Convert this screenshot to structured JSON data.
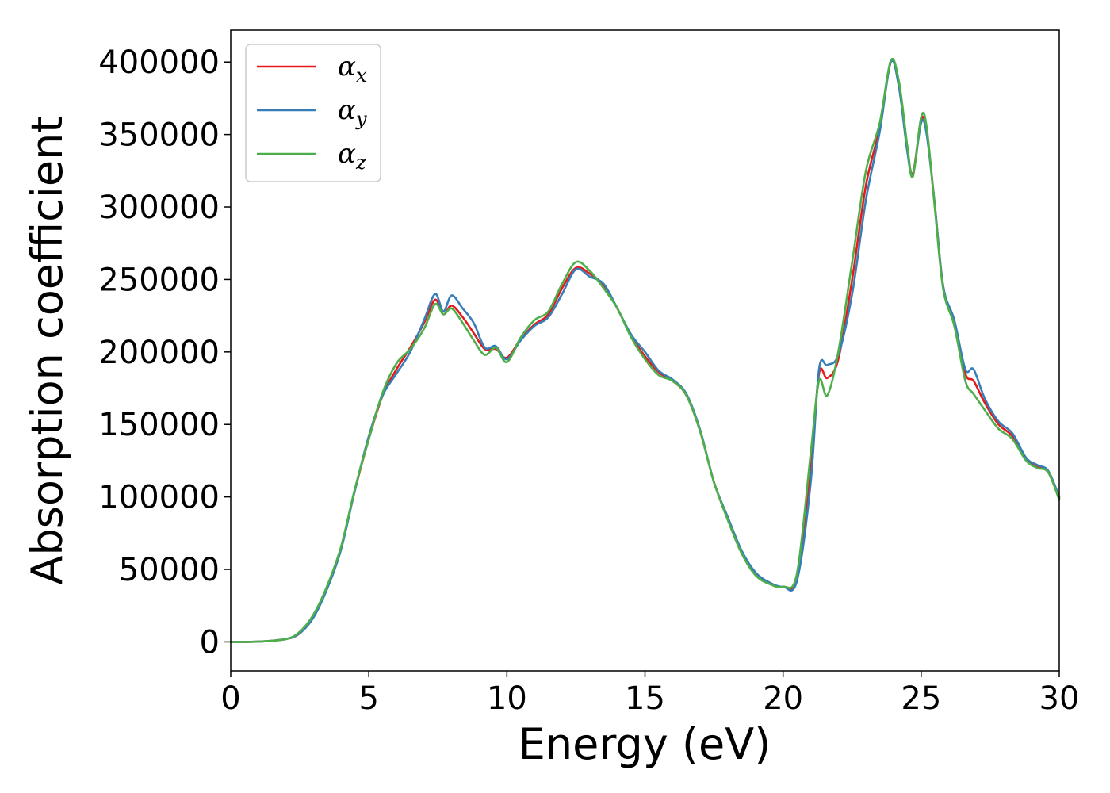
{
  "chart_data": {
    "type": "line",
    "xlabel": "Energy (eV)",
    "ylabel": "Absorption coefficient",
    "xlim": [
      0,
      30
    ],
    "ylim": [
      -20000,
      422000
    ],
    "x_ticks": [
      "0",
      "5",
      "10",
      "15",
      "20",
      "25",
      "30"
    ],
    "y_ticks": [
      "0",
      "50000",
      "100000",
      "150000",
      "200000",
      "250000",
      "300000",
      "350000",
      "400000"
    ],
    "grid": false,
    "legend_position": "top-left",
    "series": [
      {
        "name": "α",
        "subscript": "x",
        "color": "#e41a1c",
        "points": [
          [
            0,
            0
          ],
          [
            1,
            200
          ],
          [
            2,
            2000
          ],
          [
            2.5,
            6000
          ],
          [
            3,
            18000
          ],
          [
            3.5,
            38000
          ],
          [
            4,
            65000
          ],
          [
            4.5,
            105000
          ],
          [
            5,
            140000
          ],
          [
            5.5,
            170000
          ],
          [
            6,
            188000
          ],
          [
            6.5,
            203000
          ],
          [
            7,
            220000
          ],
          [
            7.4,
            236000
          ],
          [
            7.7,
            226000
          ],
          [
            8,
            232000
          ],
          [
            8.4,
            224000
          ],
          [
            8.8,
            213000
          ],
          [
            9.2,
            202000
          ],
          [
            9.6,
            202000
          ],
          [
            10,
            196000
          ],
          [
            10.5,
            209000
          ],
          [
            11,
            219000
          ],
          [
            11.5,
            226000
          ],
          [
            12,
            244000
          ],
          [
            12.5,
            258000
          ],
          [
            13,
            254000
          ],
          [
            13.5,
            246000
          ],
          [
            14,
            230000
          ],
          [
            14.5,
            211000
          ],
          [
            15,
            197000
          ],
          [
            15.5,
            186000
          ],
          [
            16,
            180000
          ],
          [
            16.5,
            170000
          ],
          [
            17,
            145000
          ],
          [
            17.5,
            110000
          ],
          [
            18,
            85000
          ],
          [
            18.5,
            62000
          ],
          [
            19,
            47000
          ],
          [
            19.5,
            41000
          ],
          [
            20,
            38000
          ],
          [
            20.5,
            45000
          ],
          [
            21,
            120000
          ],
          [
            21.3,
            185000
          ],
          [
            21.6,
            182000
          ],
          [
            22,
            195000
          ],
          [
            22.5,
            250000
          ],
          [
            23,
            315000
          ],
          [
            23.5,
            355000
          ],
          [
            23.9,
            400000
          ],
          [
            24.2,
            385000
          ],
          [
            24.5,
            340000
          ],
          [
            24.7,
            323000
          ],
          [
            25,
            360000
          ],
          [
            25.2,
            352000
          ],
          [
            25.5,
            300000
          ],
          [
            25.8,
            245000
          ],
          [
            26.2,
            220000
          ],
          [
            26.6,
            185000
          ],
          [
            26.9,
            180000
          ],
          [
            27.3,
            165000
          ],
          [
            27.8,
            150000
          ],
          [
            28.3,
            142000
          ],
          [
            28.8,
            126000
          ],
          [
            29.2,
            121000
          ],
          [
            29.6,
            117000
          ],
          [
            30,
            99000
          ]
        ]
      },
      {
        "name": "α",
        "subscript": "y",
        "color": "#377eb8",
        "points": [
          [
            0,
            0
          ],
          [
            1,
            200
          ],
          [
            2,
            2000
          ],
          [
            2.5,
            6000
          ],
          [
            3,
            17000
          ],
          [
            3.5,
            37000
          ],
          [
            4,
            64000
          ],
          [
            4.5,
            105000
          ],
          [
            5,
            142000
          ],
          [
            5.5,
            170000
          ],
          [
            6,
            185000
          ],
          [
            6.5,
            200000
          ],
          [
            7,
            222000
          ],
          [
            7.4,
            240000
          ],
          [
            7.7,
            228000
          ],
          [
            8,
            239000
          ],
          [
            8.4,
            230000
          ],
          [
            8.8,
            220000
          ],
          [
            9.2,
            203000
          ],
          [
            9.6,
            204000
          ],
          [
            10,
            195000
          ],
          [
            10.5,
            208000
          ],
          [
            11,
            218000
          ],
          [
            11.5,
            224000
          ],
          [
            12,
            240000
          ],
          [
            12.5,
            257000
          ],
          [
            13,
            252000
          ],
          [
            13.5,
            247000
          ],
          [
            14,
            230000
          ],
          [
            14.5,
            212000
          ],
          [
            15,
            200000
          ],
          [
            15.5,
            187000
          ],
          [
            16,
            181000
          ],
          [
            16.5,
            171000
          ],
          [
            17,
            146000
          ],
          [
            17.5,
            110000
          ],
          [
            18,
            86000
          ],
          [
            18.5,
            63000
          ],
          [
            19,
            48000
          ],
          [
            19.5,
            41000
          ],
          [
            20,
            38000
          ],
          [
            20.5,
            42000
          ],
          [
            21,
            110000
          ],
          [
            21.3,
            188000
          ],
          [
            21.6,
            191000
          ],
          [
            22,
            198000
          ],
          [
            22.5,
            240000
          ],
          [
            23,
            305000
          ],
          [
            23.5,
            352000
          ],
          [
            23.9,
            400000
          ],
          [
            24.2,
            382000
          ],
          [
            24.5,
            338000
          ],
          [
            24.7,
            322000
          ],
          [
            25,
            358000
          ],
          [
            25.2,
            350000
          ],
          [
            25.5,
            300000
          ],
          [
            25.8,
            245000
          ],
          [
            26.2,
            222000
          ],
          [
            26.6,
            188000
          ],
          [
            26.9,
            188000
          ],
          [
            27.3,
            168000
          ],
          [
            27.8,
            152000
          ],
          [
            28.3,
            144000
          ],
          [
            28.8,
            127000
          ],
          [
            29.2,
            122000
          ],
          [
            29.6,
            118000
          ],
          [
            30,
            100000
          ]
        ]
      },
      {
        "name": "α",
        "subscript": "z",
        "color": "#4daf4a",
        "points": [
          [
            0,
            0
          ],
          [
            1,
            200
          ],
          [
            2,
            2000
          ],
          [
            2.5,
            7000
          ],
          [
            3,
            19000
          ],
          [
            3.5,
            39000
          ],
          [
            4,
            66000
          ],
          [
            4.5,
            106000
          ],
          [
            5,
            140000
          ],
          [
            5.5,
            172000
          ],
          [
            6,
            192000
          ],
          [
            6.5,
            202000
          ],
          [
            7,
            216000
          ],
          [
            7.4,
            233000
          ],
          [
            7.7,
            226000
          ],
          [
            8,
            230000
          ],
          [
            8.4,
            220000
          ],
          [
            8.8,
            208000
          ],
          [
            9.2,
            198000
          ],
          [
            9.6,
            203000
          ],
          [
            10,
            193000
          ],
          [
            10.5,
            210000
          ],
          [
            11,
            222000
          ],
          [
            11.5,
            228000
          ],
          [
            12,
            247000
          ],
          [
            12.5,
            262000
          ],
          [
            13,
            256000
          ],
          [
            13.5,
            244000
          ],
          [
            14,
            230000
          ],
          [
            14.5,
            210000
          ],
          [
            15,
            195000
          ],
          [
            15.5,
            184000
          ],
          [
            16,
            180000
          ],
          [
            16.5,
            170000
          ],
          [
            17,
            145000
          ],
          [
            17.5,
            110000
          ],
          [
            18,
            84000
          ],
          [
            18.5,
            61000
          ],
          [
            19,
            46000
          ],
          [
            19.5,
            40000
          ],
          [
            20,
            38000
          ],
          [
            20.5,
            47000
          ],
          [
            21,
            130000
          ],
          [
            21.3,
            180000
          ],
          [
            21.6,
            170000
          ],
          [
            22,
            200000
          ],
          [
            22.5,
            262000
          ],
          [
            23,
            325000
          ],
          [
            23.5,
            358000
          ],
          [
            23.9,
            401000
          ],
          [
            24.2,
            386000
          ],
          [
            24.5,
            342000
          ],
          [
            24.7,
            321000
          ],
          [
            25,
            362000
          ],
          [
            25.2,
            355000
          ],
          [
            25.5,
            298000
          ],
          [
            25.8,
            243000
          ],
          [
            26.2,
            218000
          ],
          [
            26.6,
            180000
          ],
          [
            26.9,
            171000
          ],
          [
            27.3,
            160000
          ],
          [
            27.8,
            147000
          ],
          [
            28.3,
            140000
          ],
          [
            28.8,
            125000
          ],
          [
            29.2,
            120000
          ],
          [
            29.6,
            117000
          ],
          [
            30,
            98000
          ]
        ]
      }
    ]
  }
}
